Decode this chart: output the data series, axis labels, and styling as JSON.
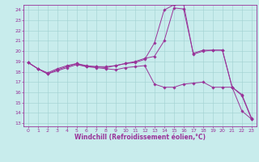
{
  "xlabel": "Windchill (Refroidissement éolien,°C)",
  "xlim": [
    -0.5,
    23.5
  ],
  "ylim": [
    12.7,
    24.5
  ],
  "yticks": [
    13,
    14,
    15,
    16,
    17,
    18,
    19,
    20,
    21,
    22,
    23,
    24
  ],
  "xticks": [
    0,
    1,
    2,
    3,
    4,
    5,
    6,
    7,
    8,
    9,
    10,
    11,
    12,
    13,
    14,
    15,
    16,
    17,
    18,
    19,
    20,
    21,
    22,
    23
  ],
  "background_color": "#c8ecec",
  "grid_color": "#a0d0d0",
  "line_color": "#993399",
  "line1_x": [
    0,
    1,
    2,
    3,
    4,
    5,
    6,
    7,
    8,
    9,
    10,
    11,
    12,
    13,
    14,
    15,
    16,
    17,
    18,
    19,
    20,
    21,
    22,
    23
  ],
  "line1_y": [
    18.9,
    18.3,
    17.9,
    18.3,
    18.6,
    18.8,
    18.5,
    18.5,
    18.5,
    18.6,
    18.8,
    19.0,
    19.3,
    19.5,
    21.0,
    24.2,
    24.1,
    19.8,
    20.1,
    20.1,
    20.1,
    16.5,
    15.8,
    13.5
  ],
  "line2_x": [
    0,
    1,
    2,
    3,
    4,
    5,
    6,
    7,
    8,
    9,
    10,
    11,
    12,
    13,
    14,
    15,
    16,
    17,
    18,
    19,
    20,
    21,
    22,
    23
  ],
  "line2_y": [
    18.9,
    18.3,
    17.8,
    18.1,
    18.4,
    18.7,
    18.5,
    18.4,
    18.3,
    18.2,
    18.4,
    18.5,
    18.6,
    16.8,
    16.5,
    16.5,
    16.8,
    16.9,
    17.0,
    16.5,
    16.5,
    16.5,
    14.2,
    13.4
  ],
  "line3_x": [
    0,
    1,
    2,
    3,
    4,
    5,
    6,
    7,
    8,
    9,
    10,
    11,
    12,
    13,
    14,
    15,
    16,
    17,
    18,
    19,
    20,
    21,
    22,
    23
  ],
  "line3_y": [
    18.9,
    18.3,
    17.8,
    18.2,
    18.5,
    18.8,
    18.6,
    18.5,
    18.4,
    18.6,
    18.8,
    18.9,
    19.2,
    20.8,
    24.0,
    24.5,
    24.6,
    19.7,
    20.0,
    20.1,
    20.1,
    16.5,
    15.7,
    13.4
  ],
  "tick_fontsize": 4.5,
  "xlabel_fontsize": 5.5
}
